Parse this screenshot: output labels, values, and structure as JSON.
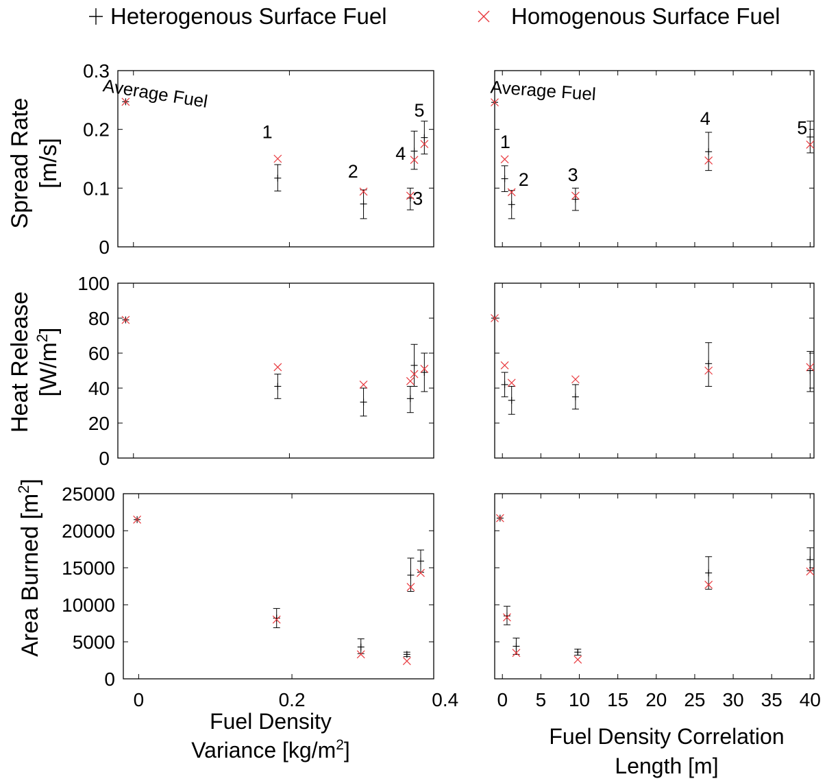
{
  "legend": {
    "heterogeneous": "Heterogenous Surface Fuel",
    "homogeneous": "Homogenous Surface Fuel",
    "position": "top",
    "heterogeneous_marker": "plus",
    "homogeneous_marker": "x"
  },
  "colors": {
    "heterogeneous": "#000000",
    "homogeneous": "#e8383d",
    "frame": "#000000"
  },
  "chart_data": [
    {
      "type": "scatter",
      "row": "spread",
      "col": "variance",
      "ylabel_line1": "Spread Rate",
      "ylabel_line2": "[m/s]",
      "xlim": [
        -0.02,
        0.385
      ],
      "ylim": [
        0,
        0.3
      ],
      "yticks": [
        "0",
        "0.1",
        "0.2",
        "0.3"
      ],
      "ytick_values": [
        0,
        0.1,
        0.2,
        0.3
      ],
      "heterogeneous": [
        {
          "x": -0.01,
          "y": 0.247,
          "lo": 0.247,
          "hi": 0.247
        },
        {
          "x": 0.185,
          "y": 0.117,
          "lo": 0.095,
          "hi": 0.14
        },
        {
          "x": 0.295,
          "y": 0.073,
          "lo": 0.048,
          "hi": 0.097
        },
        {
          "x": 0.355,
          "y": 0.083,
          "lo": 0.063,
          "hi": 0.1
        },
        {
          "x": 0.36,
          "y": 0.163,
          "lo": 0.132,
          "hi": 0.197
        },
        {
          "x": 0.373,
          "y": 0.186,
          "lo": 0.158,
          "hi": 0.214
        }
      ],
      "homogeneous": [
        {
          "x": -0.01,
          "y": 0.247
        },
        {
          "x": 0.185,
          "y": 0.15
        },
        {
          "x": 0.295,
          "y": 0.094
        },
        {
          "x": 0.355,
          "y": 0.087
        },
        {
          "x": 0.36,
          "y": 0.148
        },
        {
          "x": 0.373,
          "y": 0.175
        }
      ],
      "annotations": [
        {
          "text": "Average Fuel",
          "x": -0.04,
          "y": 0.265
        },
        {
          "text": "1",
          "x": 0.165,
          "y": 0.185
        },
        {
          "text": "2",
          "x": 0.275,
          "y": 0.118
        },
        {
          "text": "3",
          "x": 0.358,
          "y": 0.072
        },
        {
          "text": "4",
          "x": 0.336,
          "y": 0.148
        },
        {
          "text": "5",
          "x": 0.36,
          "y": 0.222
        }
      ]
    },
    {
      "type": "scatter",
      "row": "spread",
      "col": "length",
      "xlim": [
        -1,
        40.5
      ],
      "ylim": [
        0,
        0.3
      ],
      "ytick_values": [
        0,
        0.1,
        0.2,
        0.3
      ],
      "heterogeneous": [
        {
          "x": -1,
          "y": 0.246,
          "lo": 0.246,
          "hi": 0.246
        },
        {
          "x": 0.3,
          "y": 0.116,
          "lo": 0.094,
          "hi": 0.138
        },
        {
          "x": 1.2,
          "y": 0.072,
          "lo": 0.048,
          "hi": 0.096
        },
        {
          "x": 9.5,
          "y": 0.081,
          "lo": 0.062,
          "hi": 0.1
        },
        {
          "x": 26.8,
          "y": 0.162,
          "lo": 0.13,
          "hi": 0.195
        },
        {
          "x": 40,
          "y": 0.187,
          "lo": 0.16,
          "hi": 0.214
        }
      ],
      "homogeneous": [
        {
          "x": -1,
          "y": 0.246
        },
        {
          "x": 0.3,
          "y": 0.149
        },
        {
          "x": 1.2,
          "y": 0.093
        },
        {
          "x": 9.5,
          "y": 0.087
        },
        {
          "x": 26.8,
          "y": 0.147
        },
        {
          "x": 40,
          "y": 0.174
        }
      ],
      "annotations": [
        {
          "text": "Average Fuel",
          "x": -1.6,
          "y": 0.262
        },
        {
          "text": "1",
          "x": -0.3,
          "y": 0.168
        },
        {
          "text": "2",
          "x": 2.1,
          "y": 0.104
        },
        {
          "text": "3",
          "x": 8.5,
          "y": 0.112
        },
        {
          "text": "4",
          "x": 25.7,
          "y": 0.208
        },
        {
          "text": "5",
          "x": 38.3,
          "y": 0.192
        }
      ]
    },
    {
      "type": "scatter",
      "row": "heat",
      "col": "variance",
      "ylabel_line1": "Heat Release",
      "ylabel_line2": "[W/m",
      "ylabel_sup": "2",
      "ylabel_close": "]",
      "xlim": [
        -0.02,
        0.385
      ],
      "ylim": [
        0,
        100
      ],
      "yticks": [
        "0",
        "20",
        "40",
        "60",
        "80",
        "100"
      ],
      "ytick_values": [
        0,
        20,
        40,
        60,
        80,
        100
      ],
      "heterogeneous": [
        {
          "x": -0.01,
          "y": 79,
          "lo": 79,
          "hi": 79
        },
        {
          "x": 0.185,
          "y": 41,
          "lo": 34,
          "hi": 48
        },
        {
          "x": 0.295,
          "y": 32,
          "lo": 24,
          "hi": 40
        },
        {
          "x": 0.355,
          "y": 34,
          "lo": 26,
          "hi": 41
        },
        {
          "x": 0.36,
          "y": 53,
          "lo": 41,
          "hi": 65
        },
        {
          "x": 0.373,
          "y": 49,
          "lo": 38,
          "hi": 60
        }
      ],
      "homogeneous": [
        {
          "x": -0.01,
          "y": 79
        },
        {
          "x": 0.185,
          "y": 52
        },
        {
          "x": 0.295,
          "y": 42
        },
        {
          "x": 0.355,
          "y": 44
        },
        {
          "x": 0.36,
          "y": 48
        },
        {
          "x": 0.373,
          "y": 51
        }
      ],
      "annotations": []
    },
    {
      "type": "scatter",
      "row": "heat",
      "col": "length",
      "xlim": [
        -1,
        40.5
      ],
      "ylim": [
        0,
        100
      ],
      "ytick_values": [
        0,
        20,
        40,
        60,
        80,
        100
      ],
      "heterogeneous": [
        {
          "x": -1,
          "y": 80,
          "lo": 80,
          "hi": 80
        },
        {
          "x": 0.3,
          "y": 42,
          "lo": 35,
          "hi": 49
        },
        {
          "x": 1.2,
          "y": 33,
          "lo": 25,
          "hi": 41
        },
        {
          "x": 9.5,
          "y": 35,
          "lo": 28,
          "hi": 42
        },
        {
          "x": 26.8,
          "y": 54,
          "lo": 41,
          "hi": 66
        },
        {
          "x": 40,
          "y": 50,
          "lo": 38,
          "hi": 61
        }
      ],
      "homogeneous": [
        {
          "x": -1,
          "y": 80
        },
        {
          "x": 0.3,
          "y": 53
        },
        {
          "x": 1.2,
          "y": 43
        },
        {
          "x": 9.5,
          "y": 45
        },
        {
          "x": 26.8,
          "y": 50
        },
        {
          "x": 40,
          "y": 52
        }
      ],
      "annotations": []
    },
    {
      "type": "scatter",
      "row": "area",
      "col": "variance",
      "ylabel_line1": "Area Burned [m",
      "ylabel_sup": "2",
      "ylabel_close": "]",
      "xlabel_line1": "Fuel Density",
      "xlabel_line2": "Variance [kg/m",
      "xlabel_sup": "2",
      "xlabel_close": "]",
      "xlim": [
        -0.02,
        0.385
      ],
      "ylim": [
        0,
        25000
      ],
      "xticks": [
        "0",
        "0.2",
        "0.4"
      ],
      "xtick_values": [
        0,
        0.2,
        0.4
      ],
      "yticks": [
        "0",
        "5000",
        "10000",
        "15000",
        "20000",
        "25000"
      ],
      "ytick_values": [
        0,
        5000,
        10000,
        15000,
        20000,
        25000
      ],
      "heterogeneous": [
        {
          "x": -0.002,
          "y": 21500,
          "lo": 21500,
          "hi": 21500
        },
        {
          "x": 0.18,
          "y": 8200,
          "lo": 6900,
          "hi": 9500
        },
        {
          "x": 0.29,
          "y": 4300,
          "lo": 3400,
          "hi": 5400
        },
        {
          "x": 0.35,
          "y": 3300,
          "lo": 3000,
          "hi": 3600
        },
        {
          "x": 0.355,
          "y": 14000,
          "lo": 11800,
          "hi": 16300
        },
        {
          "x": 0.368,
          "y": 15900,
          "lo": 14400,
          "hi": 17400
        }
      ],
      "homogeneous": [
        {
          "x": -0.002,
          "y": 21500
        },
        {
          "x": 0.18,
          "y": 8000
        },
        {
          "x": 0.29,
          "y": 3300
        },
        {
          "x": 0.35,
          "y": 2400
        },
        {
          "x": 0.355,
          "y": 12400
        },
        {
          "x": 0.368,
          "y": 14300
        }
      ],
      "annotations": []
    },
    {
      "type": "scatter",
      "row": "area",
      "col": "length",
      "xlabel_line1": "Fuel Density Correlation",
      "xlabel_line2": "Length [m]",
      "xlim": [
        -1,
        40.5
      ],
      "ylim": [
        0,
        25000
      ],
      "xticks": [
        "0",
        "5",
        "10",
        "15",
        "20",
        "25",
        "30",
        "35",
        "40"
      ],
      "xtick_values": [
        0,
        5,
        10,
        15,
        20,
        25,
        30,
        35,
        40
      ],
      "ytick_values": [
        0,
        5000,
        10000,
        15000,
        20000,
        25000
      ],
      "heterogeneous": [
        {
          "x": -0.3,
          "y": 21700,
          "lo": 21700,
          "hi": 21700
        },
        {
          "x": 0.6,
          "y": 8500,
          "lo": 7300,
          "hi": 9800
        },
        {
          "x": 1.8,
          "y": 4400,
          "lo": 3300,
          "hi": 5500
        },
        {
          "x": 9.8,
          "y": 3600,
          "lo": 3200,
          "hi": 4000
        },
        {
          "x": 26.8,
          "y": 14300,
          "lo": 12100,
          "hi": 16500
        },
        {
          "x": 40,
          "y": 16100,
          "lo": 14600,
          "hi": 17700
        }
      ],
      "homogeneous": [
        {
          "x": -0.3,
          "y": 21700
        },
        {
          "x": 0.6,
          "y": 8300
        },
        {
          "x": 1.8,
          "y": 3500
        },
        {
          "x": 9.8,
          "y": 2600
        },
        {
          "x": 26.8,
          "y": 12700
        },
        {
          "x": 40,
          "y": 14500
        }
      ],
      "annotations": []
    }
  ]
}
